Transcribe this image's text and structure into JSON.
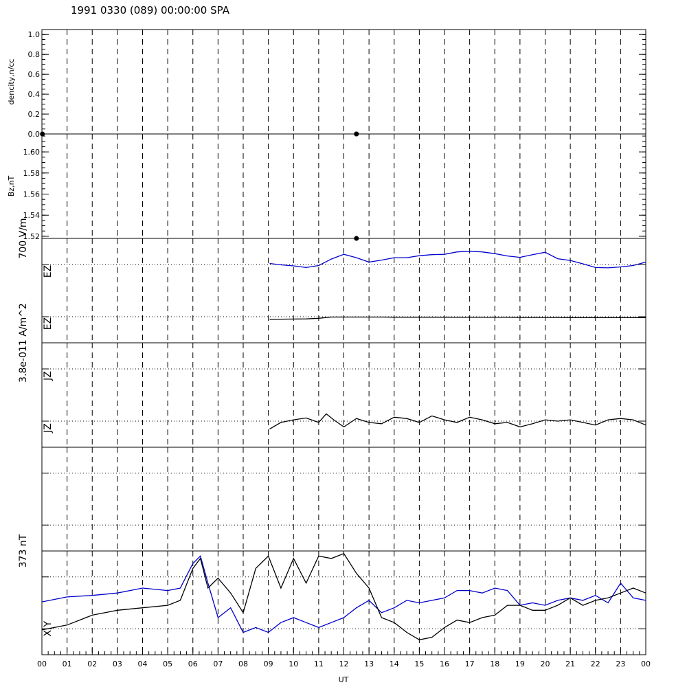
{
  "title": "1991 0330 (089) 00:00:00 SPA",
  "colors": {
    "black": "#000000",
    "blue": "#0000cc"
  },
  "chart_data": [
    {
      "type": "scatter",
      "ylabel": "dencity,n/cc",
      "ylim": [
        0,
        1.05
      ],
      "yticks": [
        "0.0",
        "0.2",
        "0.4",
        "0.6",
        "0.8",
        "1.0"
      ],
      "ytick_values": [
        0,
        0.2,
        0.4,
        0.6,
        0.8,
        1.0
      ],
      "series": [
        {
          "color": "#000000",
          "x": [
            0.02,
            12.5
          ],
          "y": [
            0.0,
            0.0
          ]
        }
      ]
    },
    {
      "type": "scatter",
      "ylabel": "Bz,nT",
      "ylim": [
        1.518,
        1.617
      ],
      "yticks": [
        "1.52",
        "1.54",
        "1.56",
        "1.58",
        "1.60"
      ],
      "ytick_values": [
        1.52,
        1.54,
        1.56,
        1.58,
        1.6
      ],
      "series": [
        {
          "color": "#000000",
          "x": [
            12.5,
            12.5
          ],
          "y": [
            1.617,
            1.518
          ]
        }
      ]
    },
    {
      "type": "line",
      "scale_label": "700 V/m",
      "trace_labels": [
        "EZ",
        "EZ"
      ],
      "x": [
        9.05,
        9.5,
        10.0,
        10.5,
        11.0,
        11.5,
        12.0,
        12.5,
        13.0,
        13.5,
        14.0,
        14.5,
        15.0,
        15.5,
        16.0,
        16.5,
        17.0,
        17.5,
        18.0,
        18.5,
        19.0,
        19.5,
        20.0,
        20.5,
        21.0,
        21.5,
        22.0,
        22.5,
        23.0,
        23.5,
        24.0
      ],
      "series": [
        {
          "color": "#0000cc",
          "y": [
            0.53,
            0.49,
            0.46,
            0.41,
            0.47,
            0.66,
            0.8,
            0.7,
            0.57,
            0.63,
            0.7,
            0.7,
            0.76,
            0.79,
            0.8,
            0.87,
            0.89,
            0.87,
            0.82,
            0.75,
            0.71,
            0.79,
            0.86,
            0.67,
            0.62,
            0.52,
            0.41,
            0.4,
            0.43,
            0.47,
            0.57
          ]
        },
        {
          "color": "#000000",
          "y": [
            -0.17,
            -0.16,
            -0.15,
            -0.14,
            -0.1,
            -0.02,
            -0.02,
            -0.02,
            -0.02,
            -0.02,
            -0.03,
            -0.03,
            -0.03,
            -0.03,
            -0.03,
            -0.04,
            -0.04,
            -0.04,
            -0.04,
            -0.04,
            -0.05,
            -0.05,
            -0.05,
            -0.05,
            -0.06,
            -0.06,
            -0.06,
            -0.06,
            -0.06,
            -0.06,
            -0.06
          ]
        }
      ]
    },
    {
      "type": "line",
      "scale_label": "3.8e-011 A/m^2",
      "trace_labels": [
        "JZ",
        "JZ"
      ],
      "x": [
        9.05,
        9.5,
        10.0,
        10.5,
        11.0,
        11.3,
        11.6,
        12.0,
        12.5,
        13.0,
        13.5,
        14.0,
        14.5,
        15.0,
        15.5,
        16.0,
        16.5,
        17.0,
        17.5,
        18.0,
        18.5,
        19.0,
        19.5,
        20.0,
        20.5,
        21.0,
        21.5,
        22.0,
        22.5,
        23.0,
        23.5,
        24.0
      ],
      "series": [
        {
          "color": "#000000",
          "y": [
            -0.3,
            -0.05,
            0.05,
            0.12,
            -0.05,
            0.28,
            0.05,
            -0.22,
            0.1,
            -0.05,
            -0.1,
            0.15,
            0.1,
            -0.05,
            0.2,
            0.05,
            -0.05,
            0.15,
            0.05,
            -0.1,
            -0.05,
            -0.22,
            -0.1,
            0.05,
            0.0,
            0.05,
            -0.05,
            -0.15,
            0.05,
            0.1,
            0.05,
            -0.15
          ]
        }
      ]
    },
    {
      "type": "line",
      "ylim": [
        -1,
        1
      ],
      "series": []
    },
    {
      "type": "line",
      "scale_label": "373 nT",
      "trace_labels": [
        "X,Y"
      ],
      "x": [
        0,
        1,
        2,
        3,
        4,
        5,
        5.5,
        6.0,
        6.3,
        6.6,
        7.0,
        7.5,
        8.0,
        8.5,
        9.0,
        9.5,
        10.0,
        10.5,
        11.0,
        11.5,
        12.0,
        12.5,
        13.0,
        13.5,
        14.0,
        14.5,
        15.0,
        15.5,
        16.0,
        16.5,
        17.0,
        17.5,
        18.0,
        18.5,
        19.0,
        19.5,
        20.0,
        20.5,
        21.0,
        21.5,
        22.0,
        22.5,
        23.0,
        23.5,
        24.0
      ],
      "series": [
        {
          "color": "#0000cc",
          "y": [
            0.02,
            0.12,
            0.15,
            0.2,
            0.3,
            0.25,
            0.3,
            0.8,
            0.95,
            0.4,
            -0.3,
            -0.1,
            -0.6,
            -0.5,
            -0.6,
            -0.4,
            -0.3,
            -0.4,
            -0.5,
            -0.4,
            -0.3,
            -0.1,
            0.05,
            -0.2,
            -0.1,
            0.05,
            0.0,
            0.05,
            0.1,
            0.25,
            0.25,
            0.2,
            0.3,
            0.25,
            -0.05,
            0.0,
            -0.05,
            0.05,
            0.1,
            0.05,
            0.15,
            0.0,
            0.4,
            0.1,
            0.05
          ]
        },
        {
          "color": "#000000",
          "y": [
            -0.55,
            -0.45,
            -0.25,
            -0.15,
            -0.1,
            -0.05,
            0.05,
            0.7,
            0.9,
            0.3,
            0.5,
            0.2,
            -0.2,
            0.7,
            0.95,
            0.3,
            0.9,
            0.4,
            0.95,
            0.9,
            1.0,
            0.6,
            0.3,
            -0.3,
            -0.4,
            -0.6,
            -0.75,
            -0.7,
            -0.5,
            -0.35,
            -0.4,
            -0.3,
            -0.25,
            -0.05,
            -0.05,
            -0.15,
            -0.15,
            -0.05,
            0.1,
            -0.05,
            0.05,
            0.1,
            0.2,
            0.3,
            0.2
          ]
        }
      ]
    }
  ],
  "xaxis": {
    "label": "UT",
    "ticks": [
      "00",
      "01",
      "02",
      "03",
      "04",
      "05",
      "06",
      "07",
      "08",
      "09",
      "10",
      "11",
      "12",
      "13",
      "14",
      "15",
      "16",
      "17",
      "18",
      "19",
      "20",
      "21",
      "22",
      "23",
      "00"
    ]
  }
}
